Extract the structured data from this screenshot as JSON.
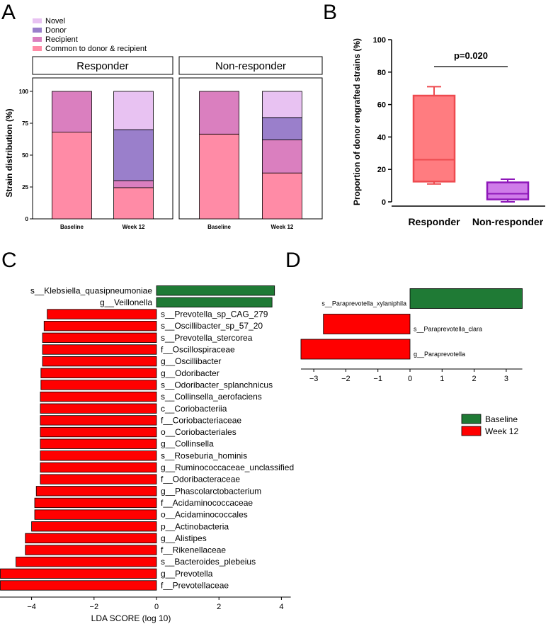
{
  "panel_labels": {
    "A": "A",
    "B": "B",
    "C": "C",
    "D": "D"
  },
  "colors": {
    "novel": "#E8C2F2",
    "donor": "#9A7FCB",
    "recipient": "#DA7FBF",
    "common": "#FF8BA6",
    "box_responder_fill": "#FF7C80",
    "box_responder_edge": "#EE4A4F",
    "box_nonresponder_fill": "#CF7CE9",
    "box_nonresponder_edge": "#8E17B9",
    "baseline": "#1F7A35",
    "week12": "#FF0000"
  },
  "chart_data": [
    {
      "id": "A",
      "type": "bar",
      "stacked": true,
      "ylabel": "Strain distribution (%)",
      "ylim": [
        0,
        100
      ],
      "yticks": [
        0,
        25,
        50,
        75,
        100
      ],
      "legend": [
        {
          "key": "novel",
          "label": "Novel"
        },
        {
          "key": "donor",
          "label": "Donor"
        },
        {
          "key": "recipient",
          "label": "Recipient"
        },
        {
          "key": "common",
          "label": "Common to donor & recipient"
        }
      ],
      "facets": [
        {
          "title": "Responder",
          "categories": [
            "Baseline",
            "Week 12"
          ],
          "series": [
            {
              "key": "common",
              "values": [
                68,
                24.5
              ]
            },
            {
              "key": "recipient",
              "values": [
                32,
                5.5
              ]
            },
            {
              "key": "donor",
              "values": [
                0,
                40
              ]
            },
            {
              "key": "novel",
              "values": [
                0,
                30
              ]
            }
          ]
        },
        {
          "title": "Non-responder",
          "categories": [
            "Baseline",
            "Week 12"
          ],
          "series": [
            {
              "key": "common",
              "values": [
                66.5,
                36
              ]
            },
            {
              "key": "recipient",
              "values": [
                33.5,
                26
              ]
            },
            {
              "key": "donor",
              "values": [
                0,
                17.5
              ]
            },
            {
              "key": "novel",
              "values": [
                0,
                20.5
              ]
            }
          ]
        }
      ]
    },
    {
      "id": "B",
      "type": "box",
      "ylabel": "Proportion of donor engrafted strains (%)",
      "ylim": [
        0,
        100
      ],
      "yticks": [
        0,
        20,
        40,
        60,
        80,
        100
      ],
      "categories": [
        "Responder",
        "Non-responder"
      ],
      "boxes": [
        {
          "name": "Responder",
          "min": 11,
          "q1": 12.5,
          "median": 26,
          "q3": 65.5,
          "max": 71
        },
        {
          "name": "Non-responder",
          "min": 0,
          "q1": 1.5,
          "median": 5,
          "q3": 12,
          "max": 14
        }
      ],
      "annotation": "p=0.020"
    },
    {
      "id": "C",
      "type": "bar",
      "orientation": "horizontal",
      "xlabel": "LDA SCORE (log 10)",
      "xlim": [
        -5,
        4.3
      ],
      "xticks": [
        -4,
        -2,
        0,
        2,
        4
      ],
      "xticklabels": [
        "−4",
        "−2",
        "0",
        "2",
        "4"
      ],
      "categories": [
        "s__Klebsiella_quasipneumoniae",
        "g__Veillonella",
        "s__Prevotella_sp_CAG_279",
        "s__Oscillibacter_sp_57_20",
        "s__Prevotella_stercorea",
        "f__Oscillospiraceae",
        "g__Oscillibacter",
        "g__Odoribacter",
        "s__Odoribacter_splanchnicus",
        "s__Collinsella_aerofaciens",
        "c__Coriobacteriia",
        "f__Coriobacteriaceae",
        "o__Coriobacteriales",
        "g__Collinsella",
        "s__Roseburia_hominis",
        "g__Ruminococcaceae_unclassified",
        "f__Odoribacteraceae",
        "g__Phascolarctobacterium",
        "f__Acidaminococcaceae",
        "o__Acidaminococcales",
        "p__Actinobacteria",
        "g__Alistipes",
        "f__Rikenellaceae",
        "s__Bacteroides_plebeius",
        "g__Prevotella",
        "f__Prevotellaceae"
      ],
      "values": [
        3.78,
        3.7,
        -3.5,
        -3.6,
        -3.65,
        -3.65,
        -3.65,
        -3.7,
        -3.7,
        -3.72,
        -3.72,
        -3.72,
        -3.72,
        -3.72,
        -3.72,
        -3.72,
        -3.72,
        -3.85,
        -3.9,
        -3.9,
        -4.0,
        -4.2,
        -4.2,
        -4.5,
        -5.0,
        -5.0
      ]
    },
    {
      "id": "D",
      "type": "bar",
      "orientation": "horizontal",
      "xlim": [
        -3.4,
        3.5
      ],
      "xticks": [
        -3,
        -2,
        -1,
        0,
        1,
        2,
        3
      ],
      "xticklabels": [
        "−3",
        "−2",
        "−1",
        "0",
        "1",
        "2",
        "3"
      ],
      "categories": [
        "s__Paraprevotella_xylaniphila",
        "s__Paraprevotella_clara",
        "g__Paraprevotella"
      ],
      "values": [
        3.5,
        -2.7,
        -3.4
      ],
      "legend": [
        {
          "key": "baseline",
          "label": "Baseline"
        },
        {
          "key": "week12",
          "label": "Week 12"
        }
      ]
    }
  ]
}
